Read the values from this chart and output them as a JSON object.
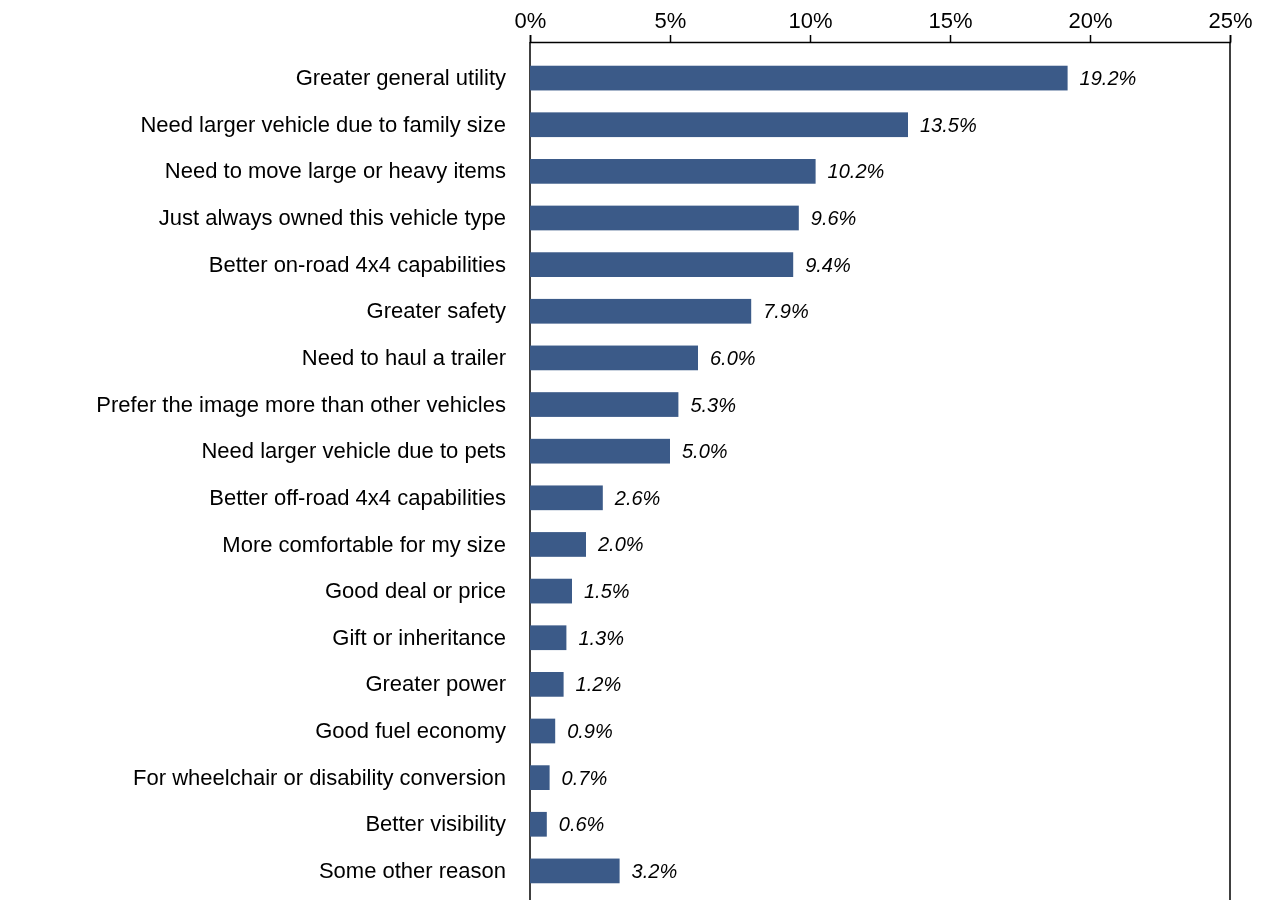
{
  "chart_data": {
    "type": "bar",
    "orientation": "horizontal",
    "categories": [
      "Greater general utility",
      "Need larger vehicle due to family size",
      "Need to move large or heavy items",
      "Just always owned this vehicle type",
      "Better on-road 4x4 capabilities",
      "Greater safety",
      "Need to haul a trailer",
      "Prefer the image more than other vehicles",
      "Need larger vehicle due to pets",
      "Better off-road 4x4 capabilities",
      "More comfortable for my size",
      "Good deal or price",
      "Gift or inheritance",
      "Greater power",
      "Good fuel economy",
      "For wheelchair or disability conversion",
      "Better visibility",
      "Some other reason"
    ],
    "values": [
      19.2,
      13.5,
      10.2,
      9.6,
      9.4,
      7.9,
      6.0,
      5.3,
      5.0,
      2.6,
      2.0,
      1.5,
      1.3,
      1.2,
      0.9,
      0.7,
      0.6,
      3.2
    ],
    "value_labels": [
      "19.2%",
      "13.5%",
      "10.2%",
      "9.6%",
      "9.4%",
      "7.9%",
      "6.0%",
      "5.3%",
      "5.0%",
      "2.6%",
      "2.0%",
      "1.5%",
      "1.3%",
      "1.2%",
      "0.9%",
      "0.7%",
      "0.6%",
      "3.2%"
    ],
    "color": "#3b5a88",
    "xlim": [
      0,
      25
    ],
    "xticks": [
      {
        "value": 0,
        "label": "0%"
      },
      {
        "value": 5,
        "label": "5%"
      },
      {
        "value": 10,
        "label": "10%"
      },
      {
        "value": 15,
        "label": "15%"
      },
      {
        "value": 20,
        "label": "20%"
      },
      {
        "value": 25,
        "label": "25%"
      }
    ],
    "grid": false
  }
}
